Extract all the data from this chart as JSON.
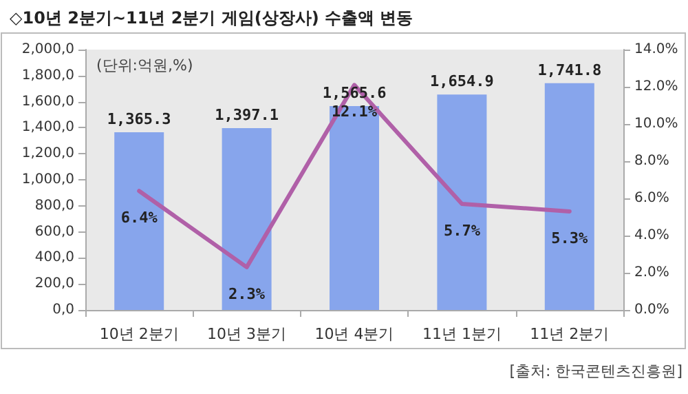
{
  "chart_data": {
    "type": "bar",
    "title": "◇10년 2분기~11년 2분기 게임(상장사) 수출액 변동",
    "categories": [
      "10년 2분기",
      "10년 3분기",
      "10년 4분기",
      "11년 1분기",
      "11년 2분기"
    ],
    "series": [
      {
        "color": "#87a5ec",
        "values": [
          1365.3,
          1397.1,
          1565.6,
          1654.9,
          1741.8
        ],
        "value_labels": [
          "1,365.3",
          "1,397.1",
          "1,565.6",
          "1,654.9",
          "1,741.8"
        ]
      },
      {
        "type": "line",
        "axis": "y2",
        "color": "#b060a8",
        "values": [
          6.4,
          2.3,
          12.1,
          5.7,
          5.3
        ],
        "value_labels": [
          "6.4%",
          "2.3%",
          "12.1%",
          "5.7%",
          "5.3%"
        ]
      }
    ],
    "ylim": [
      0,
      2000
    ],
    "yticks": [
      {
        "value": 0,
        "label": "0,0"
      },
      {
        "value": 200,
        "label": "200,0"
      },
      {
        "value": 400,
        "label": "400,0"
      },
      {
        "value": 600,
        "label": "600,0"
      },
      {
        "value": 800,
        "label": "800,0"
      },
      {
        "value": 1000,
        "label": "1,000,0"
      },
      {
        "value": 1200,
        "label": "1,200,0"
      },
      {
        "value": 1400,
        "label": "1,400,0"
      },
      {
        "value": 1600,
        "label": "1,600,0"
      },
      {
        "value": 1800,
        "label": "1,800,0"
      },
      {
        "value": 2000,
        "label": "2,000,0"
      }
    ],
    "y2lim": [
      0,
      14
    ],
    "y2ticks": [
      {
        "value": 0,
        "label": "0.0%"
      },
      {
        "value": 2,
        "label": "2.0%"
      },
      {
        "value": 4,
        "label": "4.0%"
      },
      {
        "value": 6,
        "label": "6.0%"
      },
      {
        "value": 8,
        "label": "8.0%"
      },
      {
        "value": 10,
        "label": "10.0%"
      },
      {
        "value": 12,
        "label": "12.0%"
      },
      {
        "value": 14,
        "label": "14.0%"
      }
    ],
    "annotations": [
      "(단위:억원,%)",
      "[출처: 한국콘텐츠진흥원]"
    ],
    "grid": false,
    "marker": "none",
    "line_style": "solid"
  }
}
